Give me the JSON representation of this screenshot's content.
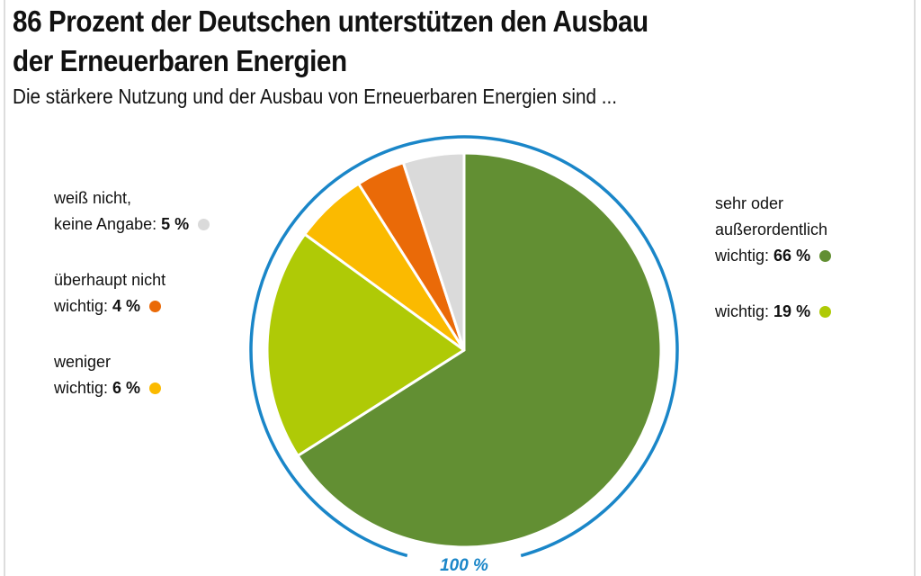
{
  "chart_data": {
    "type": "pie",
    "title": "86 Prozent der Deutschen unterstützen den Ausbau der Erneuerbaren Energien",
    "title_lines": [
      "86 Prozent der Deutschen unterstützen den Ausbau",
      "der Erneuerbaren Energien"
    ],
    "subtitle": "Die stärkere Nutzung und der Ausbau von Erneuerbaren Energien sind ...",
    "total_label": "100 %",
    "ring_color": "#1a86c8",
    "slices": [
      {
        "label_lines": [
          "sehr oder",
          "außerordentlich",
          "wichtig:"
        ],
        "value": 66,
        "value_text": "66 %",
        "color": "#628f33"
      },
      {
        "label_lines": [
          "wichtig:"
        ],
        "value": 19,
        "value_text": "19 %",
        "color": "#afca06"
      },
      {
        "label_lines": [
          "weniger",
          "wichtig:"
        ],
        "value": 6,
        "value_text": "6 %",
        "color": "#fbba00"
      },
      {
        "label_lines": [
          "überhaupt nicht",
          "wichtig:"
        ],
        "value": 4,
        "value_text": "4 %",
        "color": "#ea6a08"
      },
      {
        "label_lines": [
          "weiß nicht,",
          "keine Angabe:"
        ],
        "value": 5,
        "value_text": "5 %",
        "color": "#dadada"
      }
    ]
  }
}
